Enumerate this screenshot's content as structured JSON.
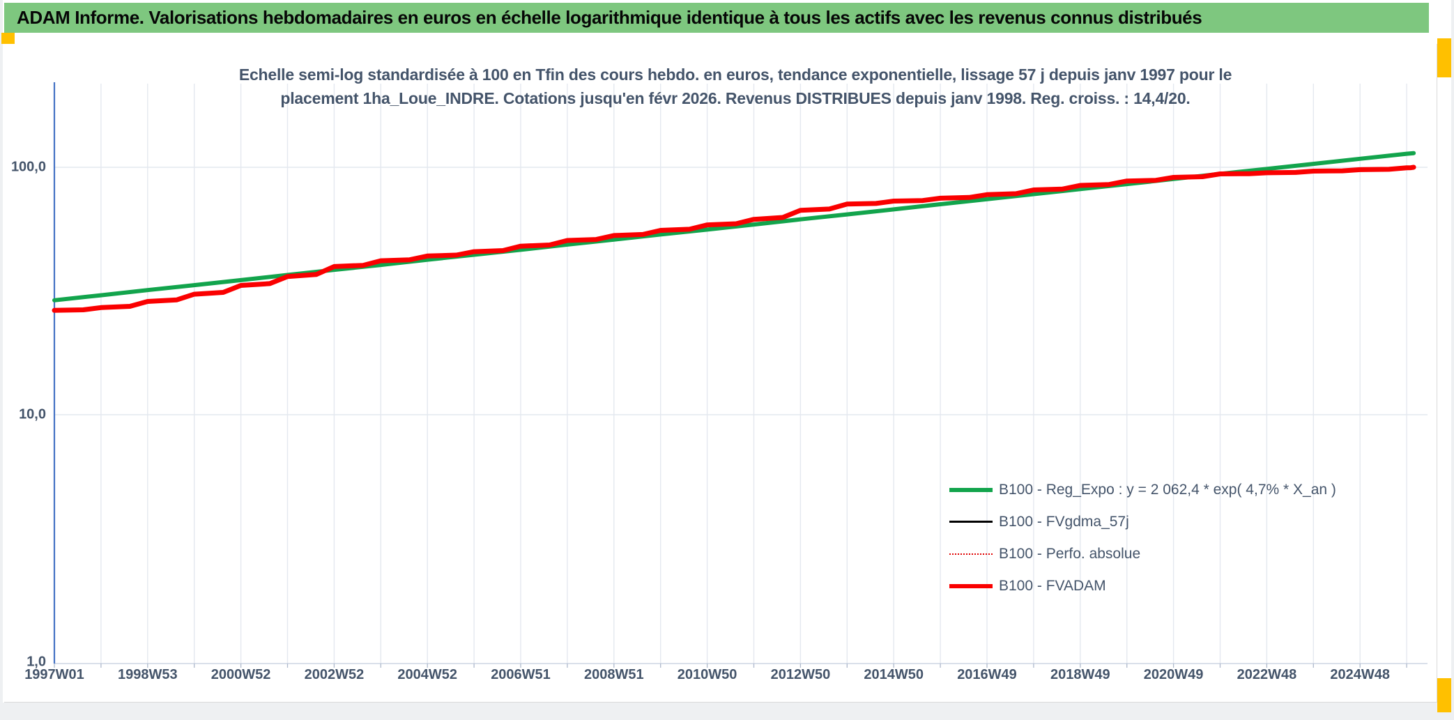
{
  "page": {
    "background": "#ffffff",
    "edge_color": "#eef0f2",
    "accent_orange": "#FFC000"
  },
  "header": {
    "title": "ADAM Informe. Valorisations hebdomadaires en euros en échelle logarithmique identique à tous les actifs avec les revenus connus distribués",
    "bg": "#7EC77F",
    "text_color": "#060606"
  },
  "chart": {
    "subtitle_line1": "Echelle semi-log standardisée à 100 en Tfin des cours hebdo. en euros, tendance exponentielle, lissage 57 j depuis janv 1997 pour le",
    "subtitle_line2": "placement 1ha_Loue_INDRE. Cotations jusqu'en févr 2026. Revenus DISTRIBUES depuis janv 1998. Reg. croiss. : 14,4/20.",
    "subtitle_color": "#44546A"
  },
  "chart_data": {
    "type": "line",
    "title": "Echelle semi-log standardisée à 100 en Tfin des cours hebdo. en euros, tendance exponentielle, lissage 57 j depuis janv 1997 pour le placement 1ha_Loue_INDRE. Cotations jusqu'en févr 2026. Revenus DISTRIBUES depuis janv 1998. Reg. croiss. : 14,4/20.",
    "y_scale": "log",
    "ylim": [
      1,
      200
    ],
    "grid": "on",
    "legend_position": "inside-bottom-right",
    "axis_color": "#4472C4",
    "x_axis_line_color": "#cdd5e3",
    "grid_color": "#E4E8EF",
    "tick_label_color": "#44546A",
    "y_ticks": [
      {
        "label": "100,0",
        "value": 100
      },
      {
        "label": "10,0",
        "value": 10
      },
      {
        "label": "1,0",
        "value": 1
      }
    ],
    "x_ticks": [
      {
        "label": "1997W01",
        "year": 1997
      },
      {
        "label": "1998W53",
        "year": 1999
      },
      {
        "label": "2000W52",
        "year": 2001
      },
      {
        "label": "2002W52",
        "year": 2003
      },
      {
        "label": "2004W52",
        "year": 2005
      },
      {
        "label": "2006W51",
        "year": 2007
      },
      {
        "label": "2008W51",
        "year": 2009
      },
      {
        "label": "2010W50",
        "year": 2011
      },
      {
        "label": "2012W50",
        "year": 2013
      },
      {
        "label": "2014W50",
        "year": 2015
      },
      {
        "label": "2016W49",
        "year": 2017
      },
      {
        "label": "2018W49",
        "year": 2019
      },
      {
        "label": "2020W49",
        "year": 2021
      },
      {
        "label": "2022W48",
        "year": 2023
      },
      {
        "label": "2024W48",
        "year": 2025
      }
    ],
    "x_years": [
      1997,
      1998,
      1999,
      2000,
      2001,
      2002,
      2003,
      2004,
      2005,
      2006,
      2007,
      2008,
      2009,
      2010,
      2011,
      2012,
      2013,
      2014,
      2015,
      2016,
      2017,
      2018,
      2019,
      2020,
      2021,
      2022,
      2023,
      2024,
      2025,
      2026,
      2026.15
    ],
    "series": [
      {
        "name": "B100 - Reg_Expo : y = 2 062,4 * exp( 4,7% *  X_an )",
        "color": "#12A44C",
        "width": 6,
        "style": "solid",
        "step": false,
        "values": [
          29.0,
          30.4,
          31.9,
          33.4,
          35.0,
          36.7,
          38.5,
          40.3,
          42.3,
          44.3,
          46.4,
          48.7,
          51.0,
          53.5,
          56.0,
          58.7,
          61.6,
          64.5,
          67.6,
          70.9,
          74.3,
          77.9,
          81.6,
          85.5,
          89.7,
          94.0,
          98.5,
          103.2,
          108.2,
          113.4,
          114.1
        ]
      },
      {
        "name": "B100 - FVgdma_57j",
        "color": "#000000",
        "width": 3,
        "style": "solid",
        "step": true,
        "note": "coincides with B100 - FVADAM, hidden beneath it in the plot",
        "values": [
          26.4,
          27.1,
          28.7,
          30.7,
          33.3,
          36.2,
          39.7,
          41.9,
          43.8,
          45.6,
          48.0,
          50.6,
          53.0,
          55.6,
          58.5,
          61.6,
          67.0,
          71.0,
          73.0,
          75.0,
          77.5,
          81.0,
          84.5,
          88.0,
          91.0,
          94.0,
          95.0,
          96.5,
          97.8,
          99.5,
          100.0
        ]
      },
      {
        "name": "B100 - Perfo. absolue",
        "color": "#DF0000",
        "width": 2,
        "style": "dotted",
        "step": true,
        "note": "coincides with B100 - FVADAM, hidden beneath it in the plot",
        "values": [
          26.4,
          27.1,
          28.7,
          30.7,
          33.3,
          36.2,
          39.7,
          41.9,
          43.8,
          45.6,
          48.0,
          50.6,
          53.0,
          55.6,
          58.5,
          61.6,
          67.0,
          71.0,
          73.0,
          75.0,
          77.5,
          81.0,
          84.5,
          88.0,
          91.0,
          94.0,
          95.0,
          96.5,
          97.8,
          99.5,
          100.0
        ]
      },
      {
        "name": "B100 - FVADAM",
        "color": "#FA0000",
        "width": 7,
        "style": "solid",
        "step": true,
        "values": [
          26.4,
          27.1,
          28.7,
          30.7,
          33.3,
          36.2,
          39.7,
          41.9,
          43.8,
          45.6,
          48.0,
          50.6,
          53.0,
          55.6,
          58.5,
          61.6,
          67.0,
          71.0,
          73.0,
          75.0,
          77.5,
          81.0,
          84.5,
          88.0,
          91.0,
          94.0,
          95.0,
          96.5,
          97.8,
          99.5,
          100.0
        ]
      }
    ]
  }
}
